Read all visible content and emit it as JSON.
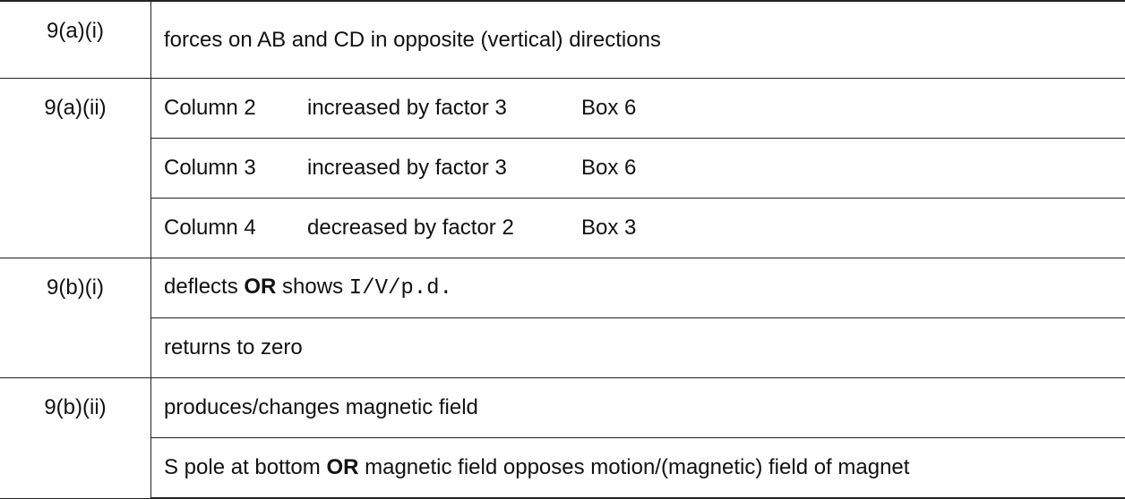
{
  "questions": {
    "q9ai": {
      "label": "9(a)(i)",
      "answer": "forces on AB and CD in opposite (vertical) directions"
    },
    "q9aii": {
      "label": "9(a)(ii)",
      "rows": [
        {
          "column": "Column 2",
          "change": "increased by factor 3",
          "box": "Box 6"
        },
        {
          "column": "Column 3",
          "change": "increased by factor 3",
          "box": "Box 6"
        },
        {
          "column": "Column 4",
          "change": "decreased by factor 2",
          "box": "Box 3"
        }
      ]
    },
    "q9bi": {
      "label": "9(b)(i)",
      "line1": {
        "pre": "deflects ",
        "or": "OR",
        "mid": " shows ",
        "quantity": "I/V/p.d."
      },
      "line2": "returns to zero"
    },
    "q9bii": {
      "label": "9(b)(ii)",
      "line1": "produces/changes magnetic field",
      "line2": {
        "pre": "S pole at bottom ",
        "or": "OR",
        "post": " magnetic field opposes motion/(magnetic) field of magnet"
      }
    }
  }
}
